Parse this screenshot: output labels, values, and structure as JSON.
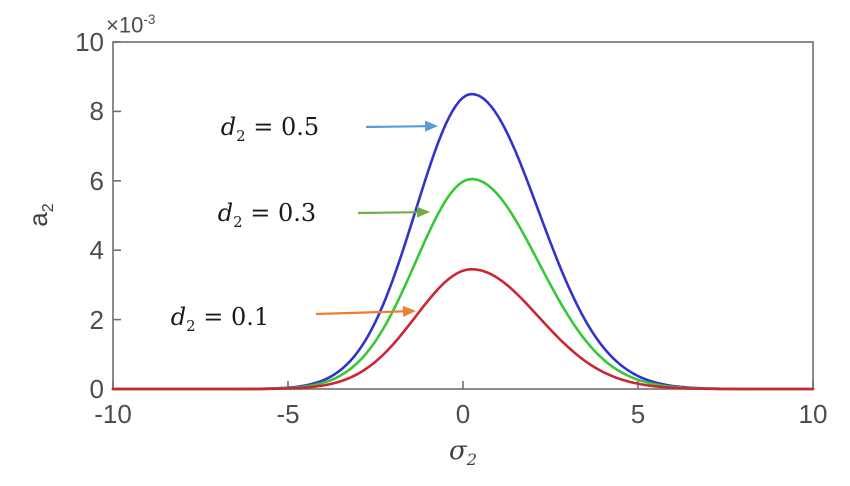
{
  "figure": {
    "background": "#ffffff",
    "axes_box_color": "#707070",
    "tick_label_color": "#4d4d4d",
    "y_multiplier": {
      "base": "×10",
      "exp": "-3"
    },
    "x_axis_label": {
      "base": "σ",
      "sub": "2"
    },
    "y_axis_label": {
      "base": "a",
      "sub": "2"
    },
    "x_ticks": [
      {
        "label": "-10",
        "value": -10
      },
      {
        "label": "-5",
        "value": -5
      },
      {
        "label": "0",
        "value": 0
      },
      {
        "label": "5",
        "value": 5
      },
      {
        "label": "10",
        "value": 10
      }
    ],
    "y_ticks": [
      {
        "label": "0",
        "value": 0
      },
      {
        "label": "2",
        "value": 2
      },
      {
        "label": "4",
        "value": 4
      },
      {
        "label": "6",
        "value": 6
      },
      {
        "label": "8",
        "value": 8
      },
      {
        "label": "10",
        "value": 10
      }
    ]
  },
  "annotations": [
    {
      "text": {
        "var": "d",
        "sub": "2",
        "eq": " = 0.5"
      },
      "color": "#5B9BD5",
      "text_center": [
        270,
        127
      ],
      "arrow": {
        "from": [
          366,
          127
        ],
        "to": [
          438,
          126
        ]
      }
    },
    {
      "text": {
        "var": "d",
        "sub": "2",
        "eq": " = 0.3"
      },
      "color": "#70AD47",
      "text_center": [
        267,
        213
      ],
      "arrow": {
        "from": [
          358,
          213
        ],
        "to": [
          430,
          212
        ]
      }
    },
    {
      "text": {
        "var": "d",
        "sub": "2",
        "eq": " = 0.1"
      },
      "color": "#ED7D31",
      "text_center": [
        220,
        317
      ],
      "arrow": {
        "from": [
          316,
          314
        ],
        "to": [
          416,
          311
        ]
      }
    }
  ],
  "chart_data": {
    "type": "line",
    "title": "",
    "xlabel": "σ_2",
    "ylabel": "a_2",
    "y_scale_note": "y tick values are ×10^-3",
    "xlim": [
      -10,
      10
    ],
    "ylim_1e3": [
      0,
      10
    ],
    "x_tick_labels": [
      "-10",
      "-5",
      "0",
      "5",
      "10"
    ],
    "y_tick_labels": [
      "0",
      "2",
      "4",
      "6",
      "8",
      "10"
    ],
    "grid": false,
    "legend": "none (labels drawn as arrow annotations)",
    "x_samples": [
      -10,
      -9,
      -8,
      -7,
      -6,
      -5,
      -4,
      -3,
      -2,
      -1,
      0,
      1,
      2,
      3,
      4,
      5,
      6,
      7,
      8,
      9,
      10
    ],
    "series": [
      {
        "name": "d2 = 0.5",
        "color": "#3333cc",
        "peak_1e3": 8.5,
        "center": 0.25,
        "sigma_left": 1.6,
        "sigma_right": 1.9,
        "values_1e3": [
          0,
          0,
          0,
          0,
          0,
          0.04,
          0.25,
          1.08,
          3.16,
          6.26,
          8.4,
          7.86,
          5.56,
          2.98,
          1.21,
          0.37,
          0.09,
          0.02,
          0,
          0,
          0
        ]
      },
      {
        "name": "d2 = 0.3",
        "color": "#37c837",
        "peak_1e3": 6.05,
        "center": 0.25,
        "sigma_left": 1.6,
        "sigma_right": 1.9,
        "values_1e3": [
          0,
          0,
          0,
          0,
          0,
          0.03,
          0.18,
          0.77,
          2.25,
          4.46,
          5.98,
          5.6,
          3.96,
          2.12,
          0.86,
          0.27,
          0.06,
          0.01,
          0,
          0,
          0
        ]
      },
      {
        "name": "d2 = 0.1",
        "color": "#cc2633",
        "peak_1e3": 3.45,
        "center": 0.25,
        "sigma_left": 1.6,
        "sigma_right": 1.9,
        "values_1e3": [
          0,
          0,
          0,
          0,
          0,
          0.02,
          0.1,
          0.44,
          1.28,
          2.54,
          3.41,
          3.19,
          2.26,
          1.21,
          0.49,
          0.15,
          0.04,
          0.01,
          0,
          0,
          0
        ]
      }
    ]
  }
}
